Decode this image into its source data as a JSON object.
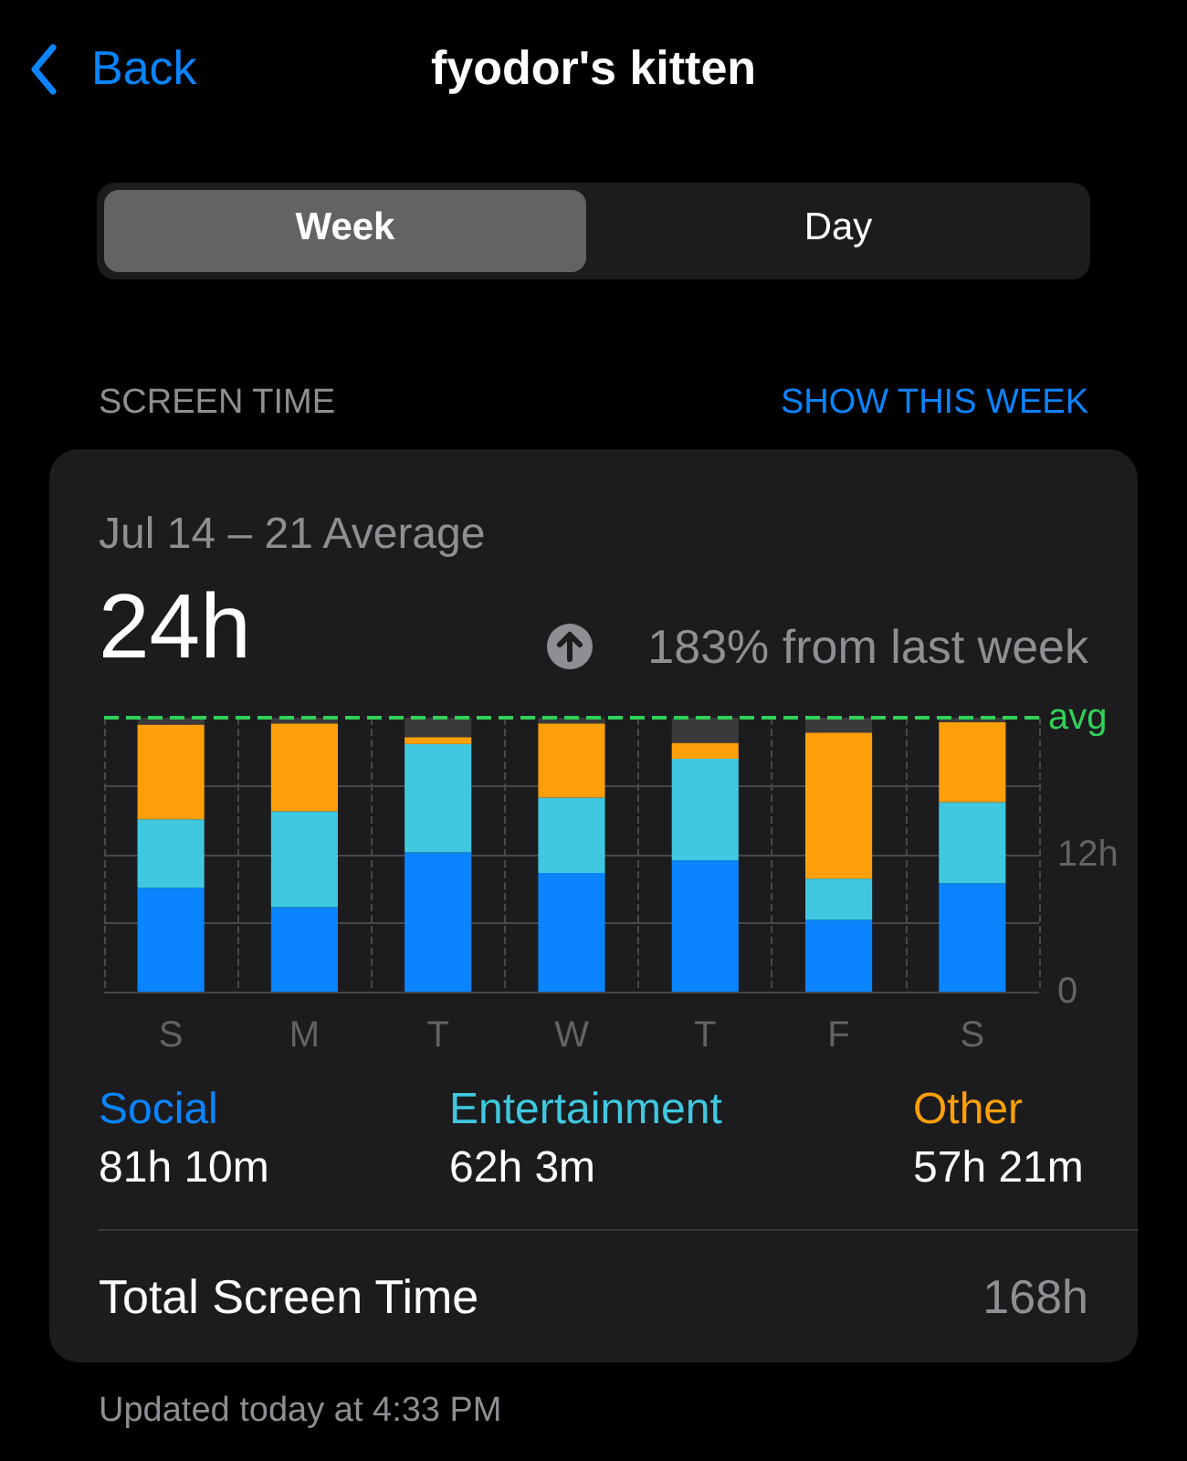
{
  "chart_data": {
    "type": "bar",
    "title": "fyodor's kitten",
    "subtitle": "Jul 14 – 21 Average",
    "categories": [
      "S",
      "M",
      "T",
      "W",
      "T",
      "F",
      "S"
    ],
    "stacked": true,
    "series": [
      {
        "name": "Social",
        "color": "#0a84ff",
        "values": [
          9.1,
          7.4,
          12.2,
          10.4,
          11.5,
          6.3,
          9.5
        ]
      },
      {
        "name": "Entertainment",
        "color": "#40c8e0",
        "values": [
          6.0,
          8.4,
          9.5,
          6.6,
          8.9,
          3.6,
          7.1
        ]
      },
      {
        "name": "Other",
        "color": "#ff9f0a",
        "values": [
          8.3,
          7.7,
          0.6,
          6.5,
          1.4,
          12.8,
          7.0
        ]
      },
      {
        "color": "#3a3a3c",
        "values": [
          0.6,
          0.5,
          1.7,
          0.5,
          2.2,
          1.3,
          0.4
        ]
      }
    ],
    "ylim": [
      0,
      24
    ],
    "yticks": [
      0,
      {
        "value": 6,
        "label": null
      },
      {
        "value": 12,
        "label": "12h"
      },
      {
        "value": 18,
        "label": null
      }
    ],
    "ref_lines": [
      {
        "axis": "y",
        "value": 24,
        "label": "avg",
        "color": "#30d158",
        "line_style": "dashed"
      }
    ],
    "grid": true,
    "legend": "bottom",
    "annotations": [
      "Back",
      "Week",
      "Day",
      "SCREEN TIME",
      "SHOW THIS WEEK",
      "24h",
      "183% from last week",
      "81h 10m",
      "62h 3m",
      "57h 21m",
      "Total Screen Time",
      "168h",
      "Updated today at 4:33 PM"
    ]
  }
}
